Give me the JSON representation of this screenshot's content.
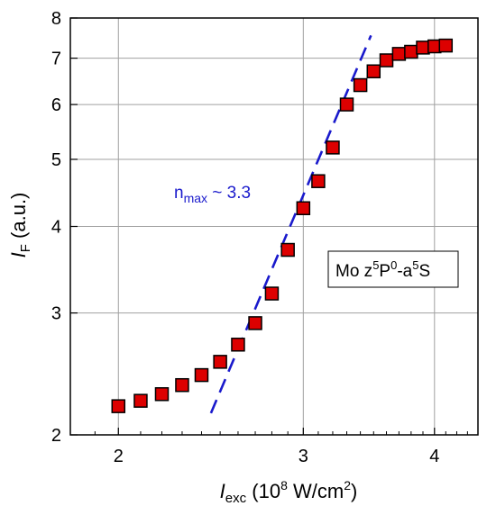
{
  "chart_data": {
    "type": "scatter",
    "x_scale": "log",
    "y_scale": "log",
    "xlim": [
      1.8,
      4.4
    ],
    "ylim": [
      2,
      8
    ],
    "x_ticks": [
      2,
      3,
      4
    ],
    "y_ticks": [
      2,
      3,
      4,
      5,
      6,
      7,
      8
    ],
    "x_tick_labels": [
      "2",
      "3",
      "4"
    ],
    "y_tick_labels": [
      "2",
      "3",
      "4",
      "5",
      "6",
      "7",
      "8"
    ],
    "grid": true,
    "xlabel": {
      "main": "I",
      "sub": "exc",
      "rest": " (10",
      "sup": "8",
      "rest2": " W/cm",
      "sup2": "2",
      "end": ")"
    },
    "ylabel": {
      "main": "I",
      "sub": "F",
      "rest": " (a.u.)"
    },
    "series": [
      {
        "marker": "square",
        "color": "#dd0000",
        "x": [
          2.0,
          2.1,
          2.2,
          2.3,
          2.4,
          2.5,
          2.6,
          2.7,
          2.8,
          2.9,
          3.0,
          3.1,
          3.2,
          3.3,
          3.4,
          3.5,
          3.6,
          3.7,
          3.8,
          3.9,
          4.0,
          4.1
        ],
        "y": [
          2.2,
          2.24,
          2.29,
          2.36,
          2.44,
          2.55,
          2.7,
          2.9,
          3.2,
          3.7,
          4.25,
          4.65,
          5.2,
          6.0,
          6.4,
          6.7,
          6.95,
          7.1,
          7.15,
          7.25,
          7.28,
          7.3
        ]
      }
    ],
    "fit_line": {
      "style": "dashed",
      "color": "#1a1acc",
      "x": [
        2.45,
        3.48
      ],
      "y": [
        2.15,
        7.55
      ]
    },
    "annotations": {
      "slope": {
        "base": "n",
        "sub": "max",
        "rest": " ~ 3.3",
        "color": "#1a1acc"
      },
      "transition": {
        "base": "Mo z",
        "sup1": "5",
        "mid1": "P",
        "sup2": "0",
        "mid2": "-a",
        "sup3": "5",
        "end": "S"
      }
    }
  }
}
